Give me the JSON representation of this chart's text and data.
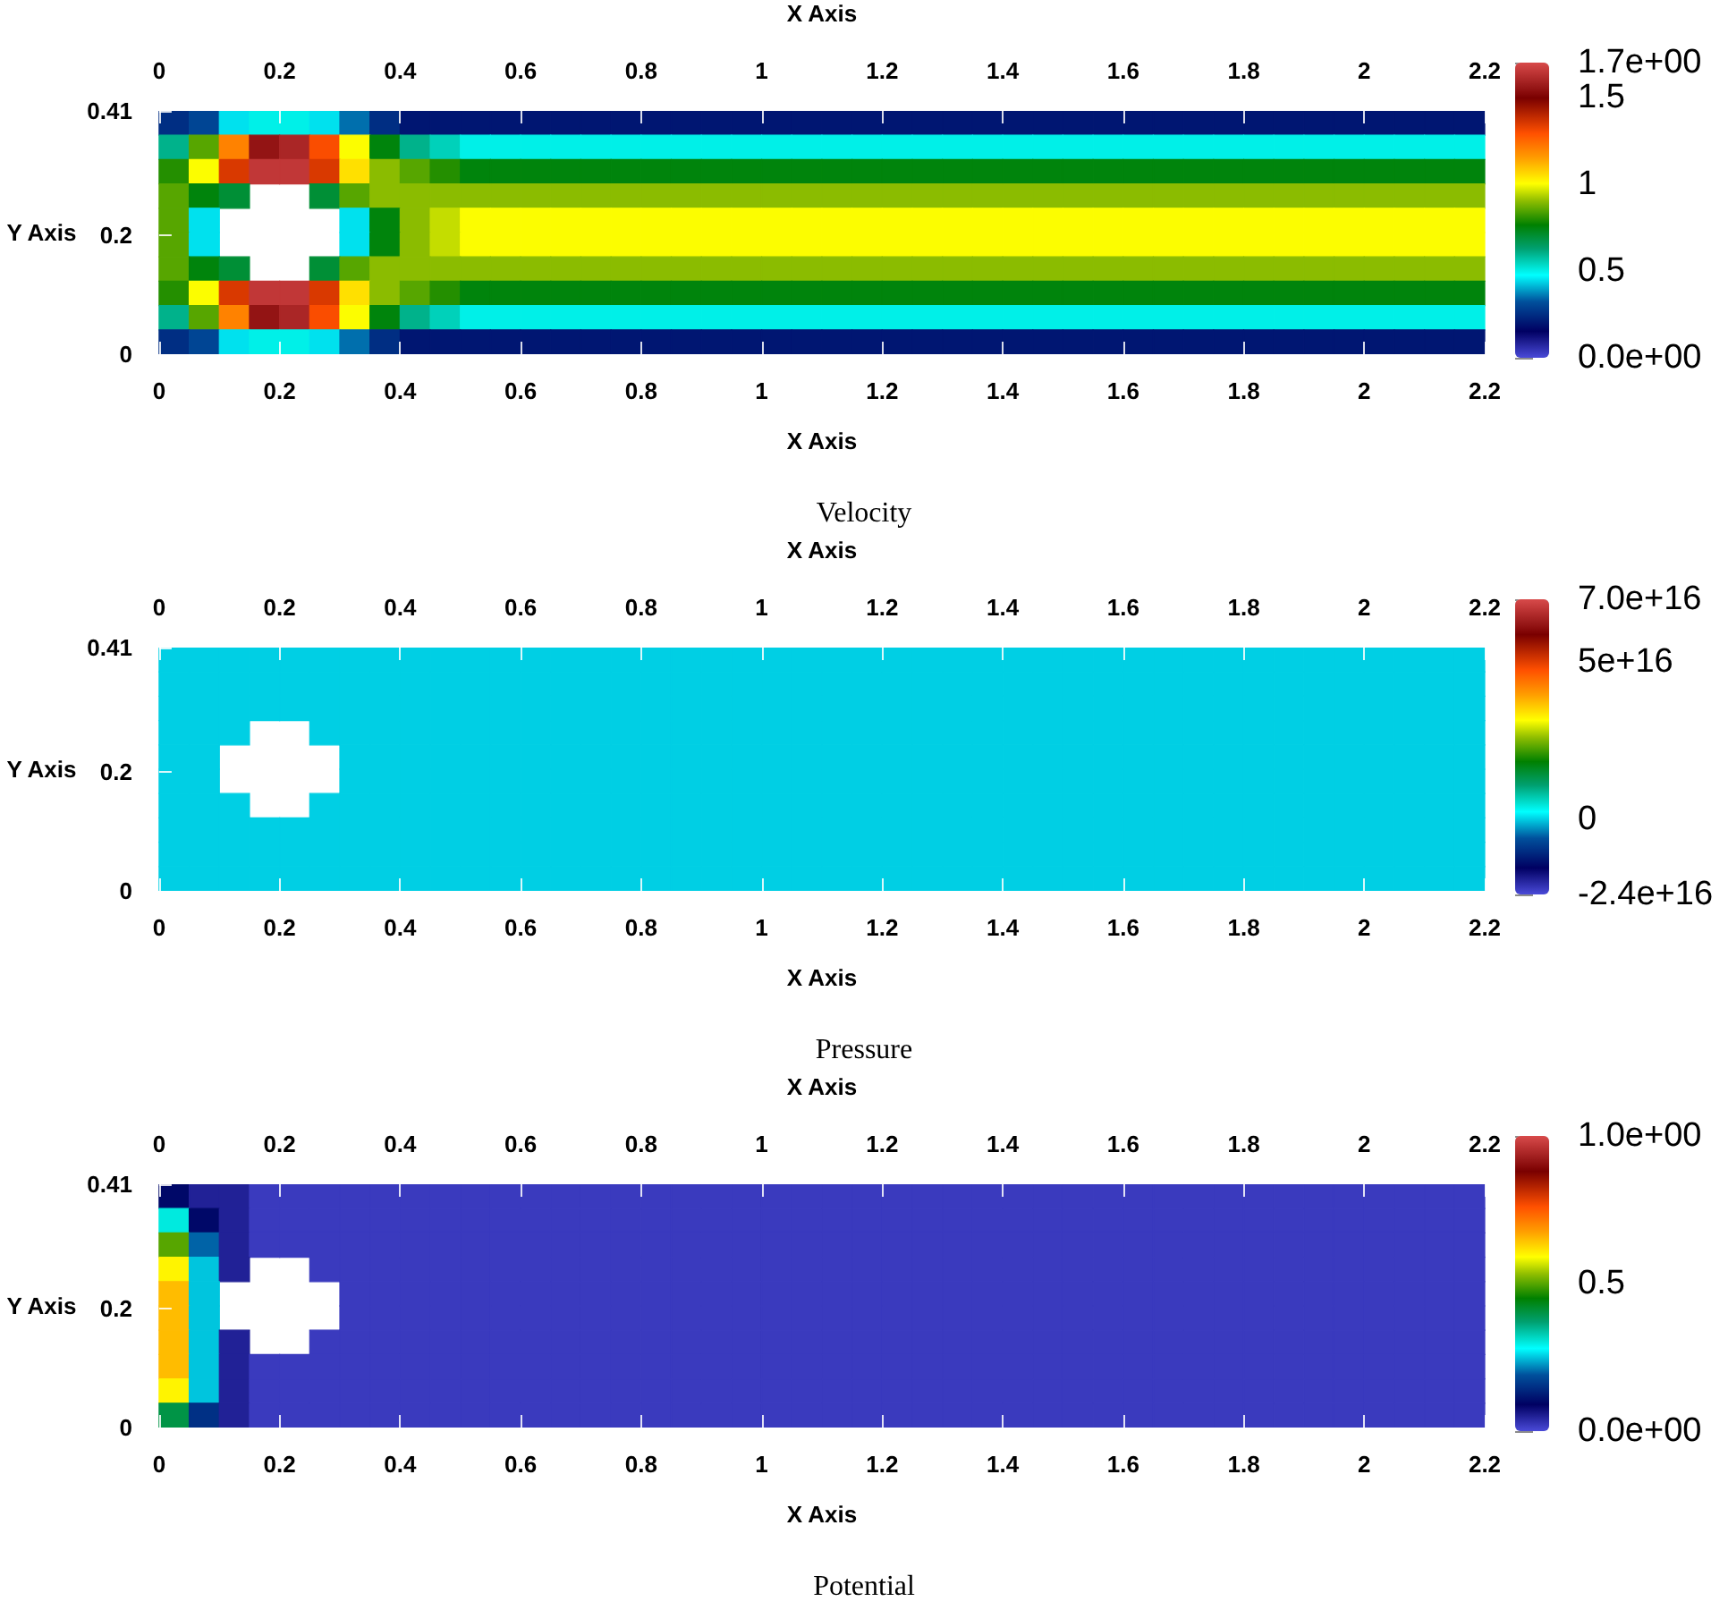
{
  "chart_data": [
    {
      "type": "heatmap",
      "title": "Velocity",
      "xlabel": "X Axis",
      "x2label": "X Axis",
      "ylabel": "Y Axis",
      "x": [
        0.025,
        0.075,
        0.125,
        0.175,
        0.225,
        0.275,
        0.325,
        0.375,
        0.425,
        0.475,
        0.525,
        0.575,
        0.625,
        0.675,
        0.725,
        0.775,
        0.825,
        0.875,
        0.925,
        0.975,
        1.025,
        1.075,
        1.125,
        1.175,
        1.225,
        1.275,
        1.325,
        1.375,
        1.425,
        1.475,
        1.525,
        1.575,
        1.625,
        1.675,
        1.725,
        1.775,
        1.825,
        1.875,
        1.925,
        1.975,
        2.025,
        2.075,
        2.125,
        2.175
      ],
      "y": [
        0.3895,
        0.3485,
        0.3075,
        0.2665,
        0.2255,
        0.1845,
        0.1435,
        0.1025,
        0.0615,
        0.0205
      ],
      "xlim": [
        0,
        2.2
      ],
      "xticks": [
        0,
        0.2,
        0.4,
        0.6,
        0.8,
        1,
        1.2,
        1.4,
        1.6,
        1.8,
        2,
        2.2
      ],
      "x2lim": [
        0,
        2.2
      ],
      "x2ticks": [
        0,
        0.2,
        0.4,
        0.6,
        0.8,
        1,
        1.2,
        1.4,
        1.6,
        1.8,
        2,
        2.2
      ],
      "ylim": [
        0,
        0.41
      ],
      "yticks": [
        0,
        0.2,
        0.41
      ],
      "clim": [
        0,
        1.7
      ],
      "cticks": [
        {
          "value": 1.7,
          "label": "1.7e+00"
        },
        1.5,
        1,
        0.5,
        {
          "value": 0,
          "label": "0.0e+00"
        }
      ],
      "cells": [
        [
          0.25,
          0.3,
          0.45,
          0.5,
          0.5,
          0.45,
          0.35,
          0.25,
          0.2,
          0.2,
          0.2,
          0.2,
          0.2,
          0.2,
          0.2,
          0.2,
          0.2,
          0.2,
          0.2,
          0.2,
          0.2,
          0.2,
          0.2,
          0.2,
          0.2,
          0.2,
          0.2,
          0.2,
          0.2,
          0.2,
          0.2,
          0.2,
          0.2,
          0.2,
          0.2,
          0.2,
          0.2,
          0.2,
          0.2,
          0.2,
          0.2,
          0.2,
          0.2,
          0.2
        ],
        [
          0.6,
          0.85,
          1.2,
          1.55,
          1.6,
          1.3,
          1,
          0.75,
          0.6,
          0.55,
          0.5,
          0.5,
          0.5,
          0.5,
          0.5,
          0.5,
          0.5,
          0.5,
          0.5,
          0.5,
          0.5,
          0.5,
          0.5,
          0.5,
          0.5,
          0.5,
          0.5,
          0.5,
          0.5,
          0.5,
          0.5,
          0.5,
          0.5,
          0.5,
          0.5,
          0.5,
          0.5,
          0.5,
          0.5,
          0.5,
          0.5,
          0.5,
          0.5,
          0.5
        ],
        [
          0.8,
          1,
          1.35,
          1.65,
          1.65,
          1.35,
          1.05,
          0.9,
          0.85,
          0.8,
          0.75,
          0.75,
          0.75,
          0.75,
          0.75,
          0.75,
          0.75,
          0.75,
          0.75,
          0.75,
          0.75,
          0.75,
          0.75,
          0.75,
          0.75,
          0.75,
          0.75,
          0.75,
          0.75,
          0.75,
          0.75,
          0.75,
          0.75,
          0.75,
          0.75,
          0.75,
          0.75,
          0.75,
          0.75,
          0.75,
          0.75,
          0.75,
          0.75,
          0.75
        ],
        [
          0.85,
          0.75,
          0.7,
          null,
          null,
          0.7,
          0.85,
          0.9,
          0.9,
          0.9,
          0.9,
          0.9,
          0.9,
          0.9,
          0.9,
          0.9,
          0.9,
          0.9,
          0.9,
          0.9,
          0.9,
          0.9,
          0.9,
          0.9,
          0.9,
          0.9,
          0.9,
          0.9,
          0.9,
          0.9,
          0.9,
          0.9,
          0.9,
          0.9,
          0.9,
          0.9,
          0.9,
          0.9,
          0.9,
          0.9,
          0.9,
          0.9,
          0.9,
          0.9
        ],
        [
          0.85,
          0.45,
          null,
          null,
          null,
          null,
          0.45,
          0.75,
          0.9,
          0.95,
          1,
          1,
          1,
          1,
          1,
          1,
          1,
          1,
          1,
          1,
          1,
          1,
          1,
          1,
          1,
          1,
          1,
          1,
          1,
          1,
          1,
          1,
          1,
          1,
          1,
          1,
          1,
          1,
          1,
          1,
          1,
          1,
          1,
          1
        ],
        [
          0.85,
          0.45,
          null,
          null,
          null,
          null,
          0.45,
          0.75,
          0.9,
          0.95,
          1,
          1,
          1,
          1,
          1,
          1,
          1,
          1,
          1,
          1,
          1,
          1,
          1,
          1,
          1,
          1,
          1,
          1,
          1,
          1,
          1,
          1,
          1,
          1,
          1,
          1,
          1,
          1,
          1,
          1,
          1,
          1,
          1,
          1
        ],
        [
          0.85,
          0.75,
          0.7,
          null,
          null,
          0.7,
          0.85,
          0.9,
          0.9,
          0.9,
          0.9,
          0.9,
          0.9,
          0.9,
          0.9,
          0.9,
          0.9,
          0.9,
          0.9,
          0.9,
          0.9,
          0.9,
          0.9,
          0.9,
          0.9,
          0.9,
          0.9,
          0.9,
          0.9,
          0.9,
          0.9,
          0.9,
          0.9,
          0.9,
          0.9,
          0.9,
          0.9,
          0.9,
          0.9,
          0.9,
          0.9,
          0.9,
          0.9,
          0.9
        ],
        [
          0.8,
          1,
          1.35,
          1.65,
          1.65,
          1.35,
          1.05,
          0.9,
          0.85,
          0.8,
          0.75,
          0.75,
          0.75,
          0.75,
          0.75,
          0.75,
          0.75,
          0.75,
          0.75,
          0.75,
          0.75,
          0.75,
          0.75,
          0.75,
          0.75,
          0.75,
          0.75,
          0.75,
          0.75,
          0.75,
          0.75,
          0.75,
          0.75,
          0.75,
          0.75,
          0.75,
          0.75,
          0.75,
          0.75,
          0.75,
          0.75,
          0.75,
          0.75,
          0.75
        ],
        [
          0.6,
          0.85,
          1.2,
          1.55,
          1.6,
          1.3,
          1,
          0.75,
          0.6,
          0.55,
          0.5,
          0.5,
          0.5,
          0.5,
          0.5,
          0.5,
          0.5,
          0.5,
          0.5,
          0.5,
          0.5,
          0.5,
          0.5,
          0.5,
          0.5,
          0.5,
          0.5,
          0.5,
          0.5,
          0.5,
          0.5,
          0.5,
          0.5,
          0.5,
          0.5,
          0.5,
          0.5,
          0.5,
          0.5,
          0.5,
          0.5,
          0.5,
          0.5,
          0.5
        ],
        [
          0.25,
          0.3,
          0.45,
          0.5,
          0.5,
          0.45,
          0.35,
          0.25,
          0.2,
          0.2,
          0.2,
          0.2,
          0.2,
          0.2,
          0.2,
          0.2,
          0.2,
          0.2,
          0.2,
          0.2,
          0.2,
          0.2,
          0.2,
          0.2,
          0.2,
          0.2,
          0.2,
          0.2,
          0.2,
          0.2,
          0.2,
          0.2,
          0.2,
          0.2,
          0.2,
          0.2,
          0.2,
          0.2,
          0.2,
          0.2,
          0.2,
          0.2,
          0.2,
          0.2
        ]
      ]
    },
    {
      "type": "heatmap",
      "title": "Pressure",
      "xlabel": "X Axis",
      "x2label": "X Axis",
      "ylabel": "Y Axis",
      "x": [
        0.025,
        0.075,
        0.125,
        0.175,
        0.225,
        0.275,
        0.325,
        0.375,
        0.425,
        0.475,
        0.525,
        0.575,
        0.625,
        0.675,
        0.725,
        0.775,
        0.825,
        0.875,
        0.925,
        0.975,
        1.025,
        1.075,
        1.125,
        1.175,
        1.225,
        1.275,
        1.325,
        1.375,
        1.425,
        1.475,
        1.525,
        1.575,
        1.625,
        1.675,
        1.725,
        1.775,
        1.825,
        1.875,
        1.925,
        1.975,
        2.025,
        2.075,
        2.125,
        2.175
      ],
      "y": [
        0.3895,
        0.3485,
        0.3075,
        0.2665,
        0.2255,
        0.1845,
        0.1435,
        0.1025,
        0.0615,
        0.0205
      ],
      "xlim": [
        0,
        2.2
      ],
      "xticks": [
        0,
        0.2,
        0.4,
        0.6,
        0.8,
        1,
        1.2,
        1.4,
        1.6,
        1.8,
        2,
        2.2
      ],
      "x2lim": [
        0,
        2.2
      ],
      "x2ticks": [
        0,
        0.2,
        0.4,
        0.6,
        0.8,
        1,
        1.2,
        1.4,
        1.6,
        1.8,
        2,
        2.2
      ],
      "ylim": [
        0,
        0.41
      ],
      "yticks": [
        0,
        0.2,
        0.41
      ],
      "clim": [
        -2.4e+16,
        7e+16
      ],
      "cticks": [
        {
          "value": 7e+16,
          "label": "7.0e+16"
        },
        {
          "value": 5e+16,
          "label": "5e+16"
        },
        0,
        {
          "value": -2.4e+16,
          "label": "-2.4e+16"
        }
      ],
      "cells": [
        [
          0,
          0,
          0,
          0,
          0,
          0,
          0,
          0,
          0,
          0,
          0,
          0,
          0,
          0,
          0,
          0,
          0,
          0,
          0,
          0,
          0,
          0,
          0,
          0,
          0,
          0,
          0,
          0,
          0,
          0,
          0,
          0,
          0,
          0,
          0,
          0,
          0,
          0,
          0,
          0,
          0,
          0,
          0,
          0
        ],
        [
          0,
          0,
          0,
          0,
          0,
          0,
          0,
          0,
          0,
          0,
          0,
          0,
          0,
          0,
          0,
          0,
          0,
          0,
          0,
          0,
          0,
          0,
          0,
          0,
          0,
          0,
          0,
          0,
          0,
          0,
          0,
          0,
          0,
          0,
          0,
          0,
          0,
          0,
          0,
          0,
          0,
          0,
          0,
          0
        ],
        [
          0,
          0,
          0,
          0,
          0,
          0,
          0,
          0,
          0,
          0,
          0,
          0,
          0,
          0,
          0,
          0,
          0,
          0,
          0,
          0,
          0,
          0,
          0,
          0,
          0,
          0,
          0,
          0,
          0,
          0,
          0,
          0,
          0,
          0,
          0,
          0,
          0,
          0,
          0,
          0,
          0,
          0,
          0,
          0
        ],
        [
          0,
          0,
          0,
          null,
          null,
          0,
          0,
          0,
          0,
          0,
          0,
          0,
          0,
          0,
          0,
          0,
          0,
          0,
          0,
          0,
          0,
          0,
          0,
          0,
          0,
          0,
          0,
          0,
          0,
          0,
          0,
          0,
          0,
          0,
          0,
          0,
          0,
          0,
          0,
          0,
          0,
          0,
          0,
          0
        ],
        [
          0,
          0,
          null,
          null,
          null,
          null,
          0,
          0,
          0,
          0,
          0,
          0,
          0,
          0,
          0,
          0,
          0,
          0,
          0,
          0,
          0,
          0,
          0,
          0,
          0,
          0,
          0,
          0,
          0,
          0,
          0,
          0,
          0,
          0,
          0,
          0,
          0,
          0,
          0,
          0,
          0,
          0,
          0,
          0
        ],
        [
          0,
          0,
          null,
          null,
          null,
          null,
          0,
          0,
          0,
          0,
          0,
          0,
          0,
          0,
          0,
          0,
          0,
          0,
          0,
          0,
          0,
          0,
          0,
          0,
          0,
          0,
          0,
          0,
          0,
          0,
          0,
          0,
          0,
          0,
          0,
          0,
          0,
          0,
          0,
          0,
          0,
          0,
          0,
          0
        ],
        [
          0,
          0,
          0,
          null,
          null,
          0,
          0,
          0,
          0,
          0,
          0,
          0,
          0,
          0,
          0,
          0,
          0,
          0,
          0,
          0,
          0,
          0,
          0,
          0,
          0,
          0,
          0,
          0,
          0,
          0,
          0,
          0,
          0,
          0,
          0,
          0,
          0,
          0,
          0,
          0,
          0,
          0,
          0,
          0
        ],
        [
          0,
          0,
          0,
          0,
          0,
          0,
          0,
          0,
          0,
          0,
          0,
          0,
          0,
          0,
          0,
          0,
          0,
          0,
          0,
          0,
          0,
          0,
          0,
          0,
          0,
          0,
          0,
          0,
          0,
          0,
          0,
          0,
          0,
          0,
          0,
          0,
          0,
          0,
          0,
          0,
          0,
          0,
          0,
          0
        ],
        [
          0,
          0,
          0,
          0,
          0,
          0,
          0,
          0,
          0,
          0,
          0,
          0,
          0,
          0,
          0,
          0,
          0,
          0,
          0,
          0,
          0,
          0,
          0,
          0,
          0,
          0,
          0,
          0,
          0,
          0,
          0,
          0,
          0,
          0,
          0,
          0,
          0,
          0,
          0,
          0,
          0,
          0,
          0,
          0
        ],
        [
          0,
          0,
          0,
          0,
          0,
          0,
          0,
          0,
          0,
          0,
          0,
          0,
          0,
          0,
          0,
          0,
          0,
          0,
          0,
          0,
          0,
          0,
          0,
          0,
          0,
          0,
          0,
          0,
          0,
          0,
          0,
          0,
          0,
          0,
          0,
          0,
          0,
          0,
          0,
          0,
          0,
          0,
          0,
          0
        ]
      ]
    },
    {
      "type": "heatmap",
      "title": "Potential",
      "xlabel": "X Axis",
      "x2label": "X Axis",
      "ylabel": "Y Axis",
      "x": [
        0.025,
        0.075,
        0.125,
        0.175,
        0.225,
        0.275,
        0.325,
        0.375,
        0.425,
        0.475,
        0.525,
        0.575,
        0.625,
        0.675,
        0.725,
        0.775,
        0.825,
        0.875,
        0.925,
        0.975,
        1.025,
        1.075,
        1.125,
        1.175,
        1.225,
        1.275,
        1.325,
        1.375,
        1.425,
        1.475,
        1.525,
        1.575,
        1.625,
        1.675,
        1.725,
        1.775,
        1.825,
        1.875,
        1.925,
        1.975,
        2.025,
        2.075,
        2.125,
        2.175
      ],
      "y": [
        0.3895,
        0.3485,
        0.3075,
        0.2665,
        0.2255,
        0.1845,
        0.1435,
        0.1025,
        0.0615,
        0.0205
      ],
      "xlim": [
        0,
        2.2
      ],
      "xticks": [
        0,
        0.2,
        0.4,
        0.6,
        0.8,
        1,
        1.2,
        1.4,
        1.6,
        1.8,
        2,
        2.2
      ],
      "x2lim": [
        0,
        2.2
      ],
      "x2ticks": [
        0,
        0.2,
        0.4,
        0.6,
        0.8,
        1,
        1.2,
        1.4,
        1.6,
        1.8,
        2,
        2.2
      ],
      "ylim": [
        0,
        0.41
      ],
      "yticks": [
        0,
        0.2,
        0.41
      ],
      "clim": [
        0,
        1
      ],
      "cticks": [
        {
          "value": 1,
          "label": "1.0e+00"
        },
        0.5,
        {
          "value": 0,
          "label": "0.0e+00"
        }
      ],
      "cells": [
        [
          0.1,
          0.05,
          0.05,
          0.02,
          0.02,
          0.02,
          0.02,
          0.02,
          0.02,
          0.02,
          0.02,
          0.02,
          0.02,
          0.02,
          0.02,
          0.02,
          0.02,
          0.02,
          0.02,
          0.02,
          0.02,
          0.02,
          0.02,
          0.02,
          0.02,
          0.02,
          0.02,
          0.02,
          0.02,
          0.02,
          0.02,
          0.02,
          0.02,
          0.02,
          0.02,
          0.02,
          0.02,
          0.02,
          0.02,
          0.02,
          0.02,
          0.02,
          0.02,
          0.02
        ],
        [
          0.3,
          0.1,
          0.05,
          0.02,
          0.02,
          0.02,
          0.02,
          0.02,
          0.02,
          0.02,
          0.02,
          0.02,
          0.02,
          0.02,
          0.02,
          0.02,
          0.02,
          0.02,
          0.02,
          0.02,
          0.02,
          0.02,
          0.02,
          0.02,
          0.02,
          0.02,
          0.02,
          0.02,
          0.02,
          0.02,
          0.02,
          0.02,
          0.02,
          0.02,
          0.02,
          0.02,
          0.02,
          0.02,
          0.02,
          0.02,
          0.02,
          0.02,
          0.02,
          0.02
        ],
        [
          0.5,
          0.2,
          0.05,
          0.02,
          0.02,
          0.02,
          0.02,
          0.02,
          0.02,
          0.02,
          0.02,
          0.02,
          0.02,
          0.02,
          0.02,
          0.02,
          0.02,
          0.02,
          0.02,
          0.02,
          0.02,
          0.02,
          0.02,
          0.02,
          0.02,
          0.02,
          0.02,
          0.02,
          0.02,
          0.02,
          0.02,
          0.02,
          0.02,
          0.02,
          0.02,
          0.02,
          0.02,
          0.02,
          0.02,
          0.02,
          0.02,
          0.02,
          0.02,
          0.02
        ],
        [
          0.6,
          0.25,
          0.05,
          null,
          null,
          0.02,
          0.02,
          0.02,
          0.02,
          0.02,
          0.02,
          0.02,
          0.02,
          0.02,
          0.02,
          0.02,
          0.02,
          0.02,
          0.02,
          0.02,
          0.02,
          0.02,
          0.02,
          0.02,
          0.02,
          0.02,
          0.02,
          0.02,
          0.02,
          0.02,
          0.02,
          0.02,
          0.02,
          0.02,
          0.02,
          0.02,
          0.02,
          0.02,
          0.02,
          0.02,
          0.02,
          0.02,
          0.02,
          0.02
        ],
        [
          0.65,
          0.25,
          null,
          null,
          null,
          null,
          0.02,
          0.02,
          0.02,
          0.02,
          0.02,
          0.02,
          0.02,
          0.02,
          0.02,
          0.02,
          0.02,
          0.02,
          0.02,
          0.02,
          0.02,
          0.02,
          0.02,
          0.02,
          0.02,
          0.02,
          0.02,
          0.02,
          0.02,
          0.02,
          0.02,
          0.02,
          0.02,
          0.02,
          0.02,
          0.02,
          0.02,
          0.02,
          0.02,
          0.02,
          0.02,
          0.02,
          0.02,
          0.02
        ],
        [
          0.65,
          0.25,
          null,
          null,
          null,
          null,
          0.02,
          0.02,
          0.02,
          0.02,
          0.02,
          0.02,
          0.02,
          0.02,
          0.02,
          0.02,
          0.02,
          0.02,
          0.02,
          0.02,
          0.02,
          0.02,
          0.02,
          0.02,
          0.02,
          0.02,
          0.02,
          0.02,
          0.02,
          0.02,
          0.02,
          0.02,
          0.02,
          0.02,
          0.02,
          0.02,
          0.02,
          0.02,
          0.02,
          0.02,
          0.02,
          0.02,
          0.02,
          0.02
        ],
        [
          0.65,
          0.25,
          0.05,
          null,
          null,
          0.02,
          0.02,
          0.02,
          0.02,
          0.02,
          0.02,
          0.02,
          0.02,
          0.02,
          0.02,
          0.02,
          0.02,
          0.02,
          0.02,
          0.02,
          0.02,
          0.02,
          0.02,
          0.02,
          0.02,
          0.02,
          0.02,
          0.02,
          0.02,
          0.02,
          0.02,
          0.02,
          0.02,
          0.02,
          0.02,
          0.02,
          0.02,
          0.02,
          0.02,
          0.02,
          0.02,
          0.02,
          0.02,
          0.02
        ],
        [
          0.65,
          0.25,
          0.05,
          0.02,
          0.02,
          0.02,
          0.02,
          0.02,
          0.02,
          0.02,
          0.02,
          0.02,
          0.02,
          0.02,
          0.02,
          0.02,
          0.02,
          0.02,
          0.02,
          0.02,
          0.02,
          0.02,
          0.02,
          0.02,
          0.02,
          0.02,
          0.02,
          0.02,
          0.02,
          0.02,
          0.02,
          0.02,
          0.02,
          0.02,
          0.02,
          0.02,
          0.02,
          0.02,
          0.02,
          0.02,
          0.02,
          0.02,
          0.02,
          0.02
        ],
        [
          0.6,
          0.25,
          0.05,
          0.02,
          0.02,
          0.02,
          0.02,
          0.02,
          0.02,
          0.02,
          0.02,
          0.02,
          0.02,
          0.02,
          0.02,
          0.02,
          0.02,
          0.02,
          0.02,
          0.02,
          0.02,
          0.02,
          0.02,
          0.02,
          0.02,
          0.02,
          0.02,
          0.02,
          0.02,
          0.02,
          0.02,
          0.02,
          0.02,
          0.02,
          0.02,
          0.02,
          0.02,
          0.02,
          0.02,
          0.02,
          0.02,
          0.02,
          0.02,
          0.02
        ],
        [
          0.4,
          0.15,
          0.05,
          0.02,
          0.02,
          0.02,
          0.02,
          0.02,
          0.02,
          0.02,
          0.02,
          0.02,
          0.02,
          0.02,
          0.02,
          0.02,
          0.02,
          0.02,
          0.02,
          0.02,
          0.02,
          0.02,
          0.02,
          0.02,
          0.02,
          0.02,
          0.02,
          0.02,
          0.02,
          0.02,
          0.02,
          0.02,
          0.02,
          0.02,
          0.02,
          0.02,
          0.02,
          0.02,
          0.02,
          0.02,
          0.02,
          0.02,
          0.02,
          0.02
        ]
      ]
    }
  ]
}
